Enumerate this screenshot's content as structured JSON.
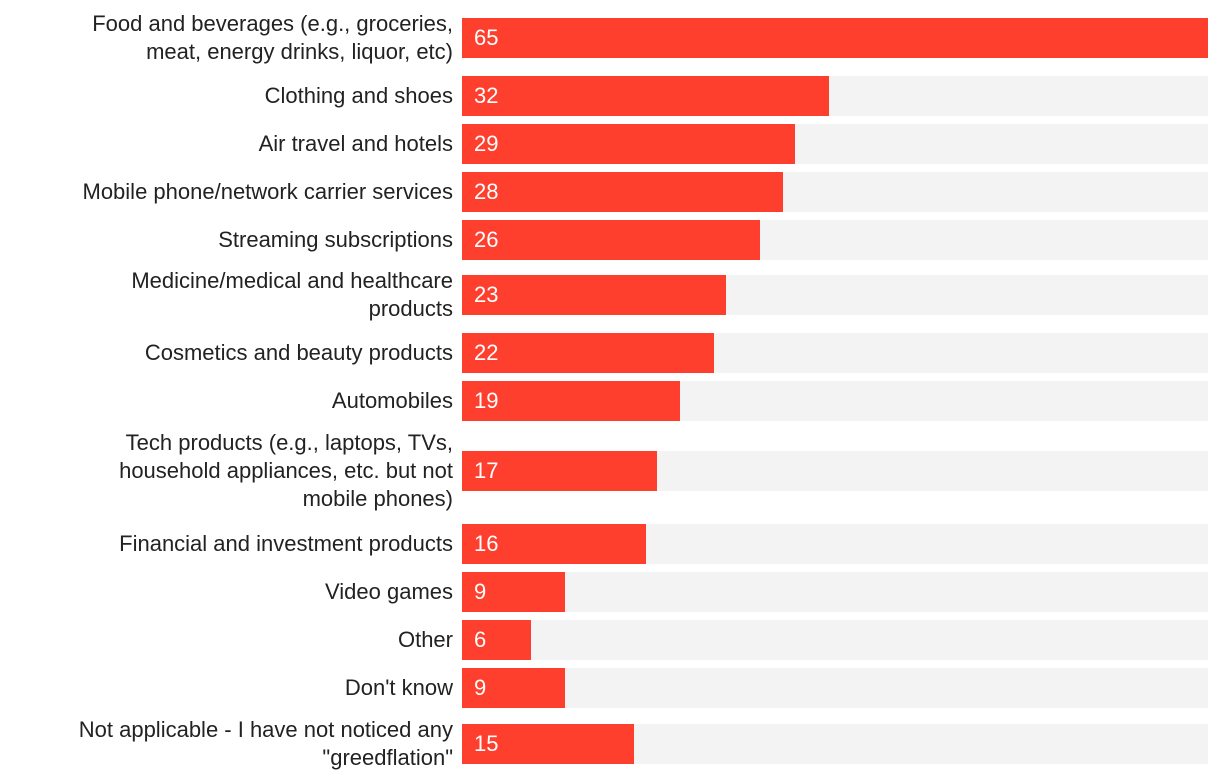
{
  "chart_data": {
    "type": "bar",
    "orientation": "horizontal",
    "title": "",
    "xlabel": "",
    "ylabel": "",
    "xlim": [
      0,
      65
    ],
    "grid": false,
    "legend": "none",
    "categories": [
      "Food and beverages (e.g., groceries,\nmeat, energy drinks, liquor, etc)",
      "Clothing and shoes",
      "Air travel and hotels",
      "Mobile phone/network carrier services",
      "Streaming subscriptions",
      "Medicine/medical and healthcare\nproducts",
      "Cosmetics and beauty products",
      "Automobiles",
      "Tech products (e.g., laptops, TVs,\nhousehold appliances, etc. but not\nmobile phones)",
      "Financial and investment products",
      "Video games",
      "Other",
      "Don't know",
      "Not applicable - I have not noticed any\n\"greedflation\""
    ],
    "values": [
      65,
      32,
      29,
      28,
      26,
      23,
      22,
      19,
      17,
      16,
      9,
      6,
      9,
      15
    ],
    "colors": {
      "bar": "#ff3f2e",
      "track": "#f3f3f3",
      "value_text": "#ffffff",
      "label_text": "#222222"
    }
  }
}
